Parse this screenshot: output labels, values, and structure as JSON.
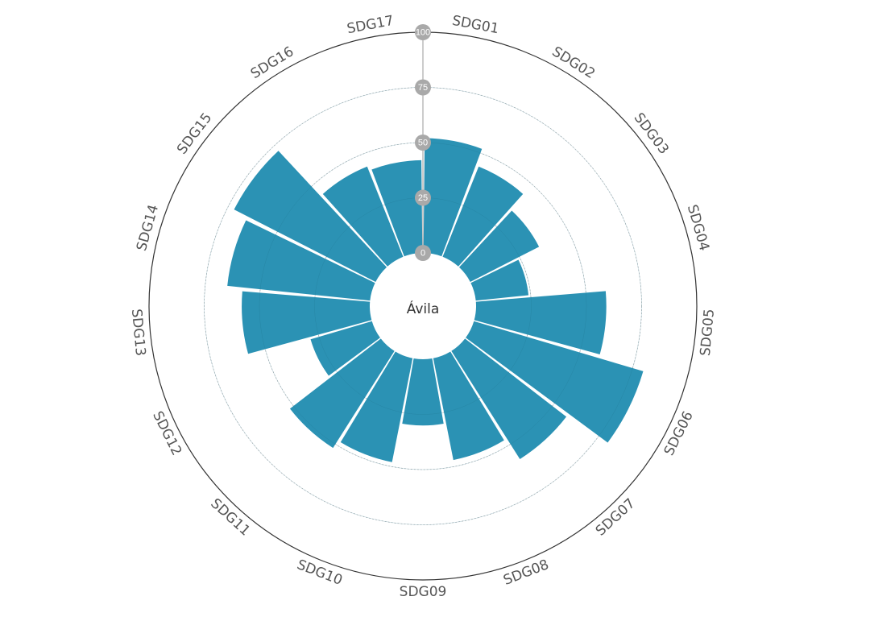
{
  "chart_data": {
    "type": "bar",
    "subtype": "radial",
    "center_label": "Ávila",
    "categories": [
      "SDG01",
      "SDG02",
      "SDG03",
      "SDG04",
      "SDG05",
      "SDG06",
      "SDG07",
      "SDG08",
      "SDG09",
      "SDG10",
      "SDG11",
      "SDG12",
      "SDG13",
      "SDG14",
      "SDG15",
      "SDG16",
      "SDG17"
    ],
    "values": [
      52,
      44,
      35,
      24,
      59,
      80,
      58,
      47,
      30,
      48,
      52,
      29,
      58,
      65,
      72,
      44,
      42
    ],
    "ylim": [
      0,
      100
    ],
    "tick_values": [
      0,
      25,
      50,
      75,
      100
    ],
    "tick_labels": [
      "0",
      "25",
      "50",
      "75",
      "100"
    ],
    "grid": true,
    "bar_color": "#2b92b4",
    "tick_badge_color": "#a9a9a9",
    "outer_ring_color": "#333333",
    "grid_color": "#bbbbbb"
  }
}
